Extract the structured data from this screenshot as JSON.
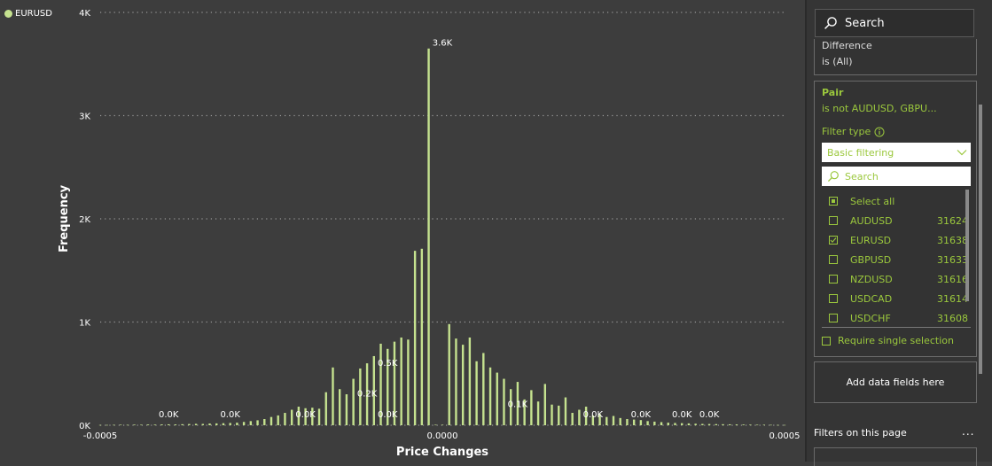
{
  "legend": {
    "label": "EURUSD",
    "color": "#c5e28f"
  },
  "chart_data": {
    "type": "bar",
    "xlabel": "Price Changes",
    "ylabel": "Frequency",
    "xlim": [
      -0.0005,
      0.0005
    ],
    "ylim": [
      0,
      4000
    ],
    "x_ticks": [
      "-0.0005",
      "0.0000",
      "0.0005"
    ],
    "y_ticks": [
      "0K",
      "1K",
      "2K",
      "3K",
      "4K"
    ],
    "grid": true,
    "bar_color": "#c5e28f",
    "series": [
      {
        "x": [
          -0.0005,
          -0.00049,
          -0.00048,
          -0.00047,
          -0.00046,
          -0.00045,
          -0.00044,
          -0.00043,
          -0.00042,
          -0.00041,
          -0.0004,
          -0.00039,
          -0.00038,
          -0.00037,
          -0.00036,
          -0.00035,
          -0.00034,
          -0.00033,
          -0.00032,
          -0.00031,
          -0.0003,
          -0.00029,
          -0.00028,
          -0.00027,
          -0.00026,
          -0.00025,
          -0.00024,
          -0.00023,
          -0.00022,
          -0.00021,
          -0.0002,
          -0.00019,
          -0.00018,
          -0.00017,
          -0.00016,
          -0.00015,
          -0.00014,
          -0.00013,
          -0.00012,
          -0.00011,
          -0.0001,
          -9e-05,
          -8e-05,
          -7e-05,
          -6e-05,
          -5e-05,
          -4e-05,
          -3e-05,
          -2e-05,
          -1e-05,
          0.0,
          1e-05,
          2e-05,
          3e-05,
          4e-05,
          5e-05,
          6e-05,
          7e-05,
          8e-05,
          9e-05,
          0.0001,
          0.00011,
          0.00012,
          0.00013,
          0.00014,
          0.00015,
          0.00016,
          0.00017,
          0.00018,
          0.00019,
          0.0002,
          0.00021,
          0.00022,
          0.00023,
          0.00024,
          0.00025,
          0.00026,
          0.00027,
          0.00028,
          0.00029,
          0.0003,
          0.00031,
          0.00032,
          0.00033,
          0.00034,
          0.00035,
          0.00036,
          0.00037,
          0.00038,
          0.00039,
          0.0004,
          0.00041,
          0.00042,
          0.00043,
          0.00044,
          0.00045,
          0.00046,
          0.00047,
          0.00048,
          0.00049,
          0.0005
        ],
        "values": [
          3,
          3,
          4,
          5,
          4,
          6,
          5,
          7,
          6,
          8,
          9,
          8,
          10,
          12,
          14,
          13,
          17,
          18,
          20,
          22,
          25,
          32,
          40,
          48,
          60,
          80,
          95,
          120,
          150,
          180,
          165,
          170,
          160,
          320,
          560,
          350,
          300,
          450,
          550,
          600,
          670,
          790,
          740,
          810,
          850,
          830,
          1690,
          1710,
          3650,
          5,
          5,
          980,
          840,
          780,
          850,
          620,
          700,
          560,
          510,
          450,
          350,
          420,
          250,
          340,
          230,
          400,
          200,
          190,
          270,
          120,
          150,
          180,
          95,
          110,
          80,
          90,
          70,
          60,
          55,
          50,
          40,
          35,
          30,
          25,
          22,
          20,
          18,
          15,
          13,
          12,
          11,
          10,
          9,
          8,
          7,
          6,
          5,
          5,
          4,
          3,
          3
        ]
      }
    ],
    "data_labels": [
      "0.0K",
      "0.0K",
      "0.0K",
      "0.2K",
      "0.5K",
      "0.0K",
      "3.6K",
      "0.1K",
      "0.0K",
      "0.0K",
      "0.0K",
      "0.0K"
    ]
  },
  "pane": {
    "search_label": "Search",
    "difference": {
      "title": "Difference",
      "value": "is (All)"
    },
    "pair": {
      "title": "Pair",
      "value": "is not AUDUSD, GBPU...",
      "filter_type_label": "Filter type",
      "dropdown_value": "Basic filtering",
      "search_placeholder": "Search",
      "items": [
        {
          "label": "Select all",
          "count": "",
          "state": "partial"
        },
        {
          "label": "AUDUSD",
          "count": "31624",
          "state": "unchecked"
        },
        {
          "label": "EURUSD",
          "count": "31638",
          "state": "checked"
        },
        {
          "label": "GBPUSD",
          "count": "31633",
          "state": "unchecked"
        },
        {
          "label": "NZDUSD",
          "count": "31616",
          "state": "unchecked"
        },
        {
          "label": "USDCAD",
          "count": "31614",
          "state": "unchecked"
        },
        {
          "label": "USDCHF",
          "count": "31608",
          "state": "unchecked"
        }
      ],
      "require_single": "Require single selection"
    },
    "add_fields": "Add data fields here",
    "page_filters": "Filters on this page",
    "more": "..."
  }
}
